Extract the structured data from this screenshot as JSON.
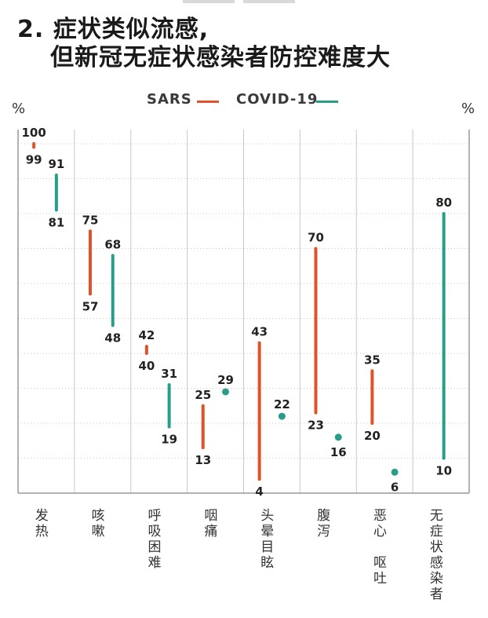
{
  "title_line1": "2. 症状类似流感,",
  "title_line2": "但新冠无症状感染者防控难度大",
  "unit_left": "%",
  "unit_right": "%",
  "colors": {
    "sars": "#e0532a",
    "covid": "#2a9d8a",
    "grid": "#c8c8c8",
    "axis": "#999999"
  },
  "chart_data": {
    "type": "range",
    "ylim": [
      0,
      100
    ],
    "legend": [
      "SARS",
      "COVID-19"
    ],
    "categories": [
      {
        "label": "发\n热",
        "sars": [
          99,
          100
        ],
        "covid": [
          81,
          91
        ]
      },
      {
        "label": "咳\n嗽",
        "sars": [
          57,
          75
        ],
        "covid": [
          48,
          68
        ]
      },
      {
        "label": "呼\n吸\n困\n难",
        "sars": [
          40,
          42
        ],
        "covid": [
          19,
          31
        ]
      },
      {
        "label": "咽\n痛",
        "sars": [
          13,
          25
        ],
        "covid": [
          29,
          29
        ]
      },
      {
        "label": "头\n晕\n目\n眩",
        "sars": [
          4,
          43
        ],
        "covid": [
          22,
          22
        ]
      },
      {
        "label": "腹\n泻",
        "sars": [
          23,
          70
        ],
        "covid": [
          16,
          16
        ]
      },
      {
        "label": "恶\n心\n\n呕\n吐",
        "sars": [
          20,
          35
        ],
        "covid": [
          6,
          6
        ]
      },
      {
        "label": "无\n症\n状\n感\n染\n者",
        "sars": null,
        "covid": [
          10,
          80
        ]
      }
    ]
  }
}
